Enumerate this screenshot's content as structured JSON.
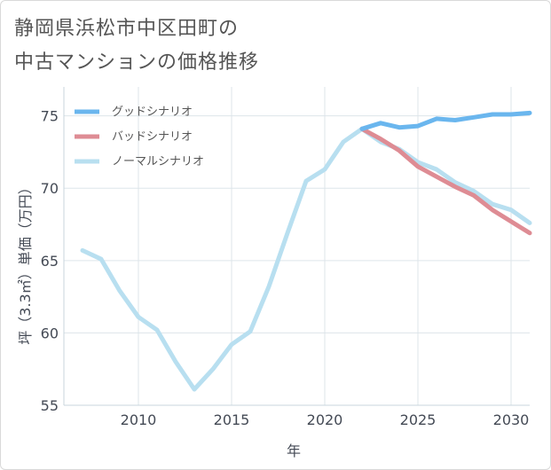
{
  "title_lines": [
    "静岡県浜松市中区田町の",
    "中古マンションの価格推移"
  ],
  "chart_data": {
    "type": "line",
    "title": "静岡県浜松市中区田町の中古マンションの価格推移",
    "xlabel": "年",
    "ylabel": "坪（3.3㎡）単価（万円）",
    "xlim": [
      2006,
      2031
    ],
    "ylim": [
      55,
      77
    ],
    "x_ticks": [
      2010,
      2015,
      2020,
      2025,
      2030
    ],
    "y_ticks": [
      55,
      60,
      65,
      70,
      75
    ],
    "legend_position": "top-left",
    "grid": true,
    "series": [
      {
        "name": "グッドシナリオ",
        "color": "#6ab6ee",
        "x": [
          2022,
          2023,
          2024,
          2025,
          2026,
          2027,
          2028,
          2029,
          2030,
          2031
        ],
        "y": [
          74.1,
          74.5,
          74.2,
          74.3,
          74.8,
          74.7,
          74.9,
          75.1,
          75.1,
          75.2
        ]
      },
      {
        "name": "バッドシナリオ",
        "color": "#de8c94",
        "x": [
          2022,
          2023,
          2024,
          2025,
          2026,
          2027,
          2028,
          2029,
          2030,
          2031
        ],
        "y": [
          74.1,
          73.4,
          72.6,
          71.5,
          70.8,
          70.1,
          69.5,
          68.5,
          67.7,
          66.9
        ]
      },
      {
        "name": "ノーマルシナリオ",
        "color": "#b8dff0",
        "x": [
          2007,
          2008,
          2009,
          2010,
          2011,
          2012,
          2013,
          2014,
          2015,
          2016,
          2017,
          2018,
          2019,
          2020,
          2021,
          2022,
          2023,
          2024,
          2025,
          2026,
          2027,
          2028,
          2029,
          2030,
          2031
        ],
        "y": [
          65.7,
          65.1,
          62.9,
          61.1,
          60.2,
          58.0,
          56.1,
          57.5,
          59.2,
          60.1,
          63.2,
          66.9,
          70.5,
          71.3,
          73.2,
          74.1,
          73.2,
          72.7,
          71.8,
          71.3,
          70.4,
          69.8,
          68.9,
          68.5,
          67.6
        ]
      }
    ]
  }
}
